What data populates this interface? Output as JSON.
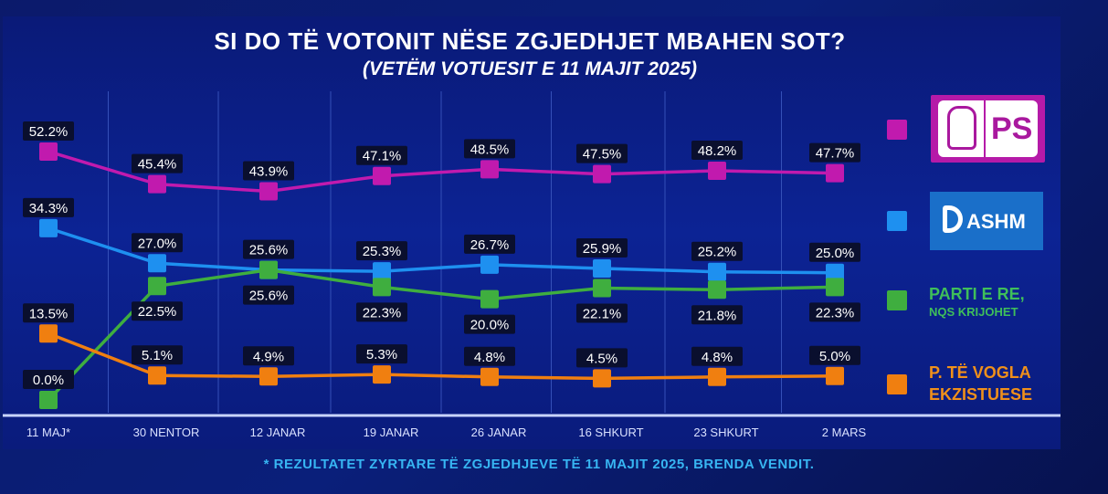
{
  "chart_data": {
    "type": "line",
    "title": "SI DO TË VOTONIT NËSE ZGJEDHJET MBAHEN SOT?",
    "subtitle": "(VETËM VOTUESIT E 11 MAJIT 2025)",
    "categories": [
      "11 MAJ*",
      "30 NENTOR",
      "12 JANAR",
      "19 JANAR",
      "26 JANAR",
      "16 SHKURT",
      "23 SHKURT",
      "2 MARS"
    ],
    "series": [
      {
        "name": "PS",
        "color": "#c11aae",
        "values": [
          52.2,
          45.4,
          43.9,
          47.1,
          48.5,
          47.5,
          48.2,
          47.7
        ]
      },
      {
        "name": "DASHM",
        "color": "#1e90f0",
        "values": [
          34.3,
          27.0,
          25.6,
          25.3,
          26.7,
          25.9,
          25.2,
          25.0
        ]
      },
      {
        "name": "PARTI E RE, NQS KRIJOHET",
        "color": "#3fae3f",
        "values": [
          0.0,
          22.5,
          25.6,
          22.3,
          20.0,
          22.1,
          21.8,
          22.3
        ]
      },
      {
        "name": "P. TË VOGLA EKZISTUESE",
        "color": "#f07f10",
        "values": [
          13.5,
          5.1,
          4.9,
          5.3,
          4.8,
          4.5,
          4.8,
          5.0
        ]
      }
    ],
    "ylim": [
      0,
      55
    ],
    "grid": "vertical",
    "legend_position": "right",
    "footnote": "* REZULTATET ZYRTARE TË ZGJEDHJEVE TË 11 MAJIT 2025, BRENDA VENDIT."
  },
  "legend": {
    "ps_logo_text": "PS",
    "dashm_logo_text": "ASHM",
    "green_line1": "PARTI E RE,",
    "green_line2": "NQS KRIJOHET",
    "orange_line1": "P. TË VOGLA",
    "orange_line2": "EKZISTUESE"
  }
}
